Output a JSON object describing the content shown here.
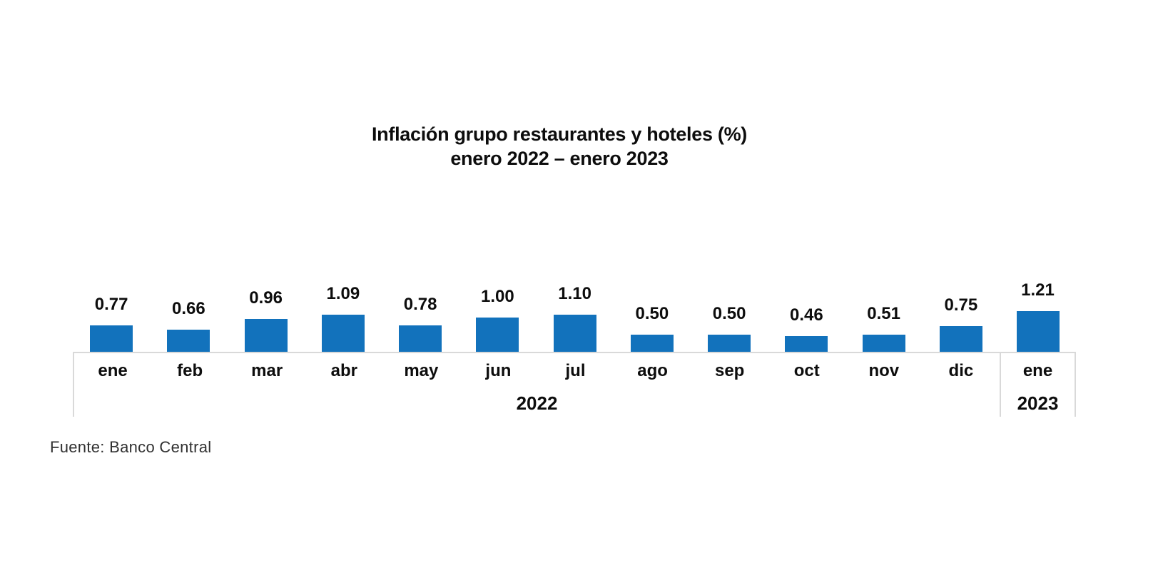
{
  "chart_data": {
    "type": "bar",
    "title": "Inflación grupo restaurantes y hoteles (%)",
    "subtitle": "enero 2022 – enero 2023",
    "categories": [
      "ene",
      "feb",
      "mar",
      "abr",
      "may",
      "jun",
      "jul",
      "ago",
      "sep",
      "oct",
      "nov",
      "dic",
      "ene"
    ],
    "values": [
      0.77,
      0.66,
      0.96,
      1.09,
      0.78,
      1.0,
      1.1,
      0.5,
      0.5,
      0.46,
      0.51,
      0.75,
      1.21
    ],
    "value_labels": [
      "0.77",
      "0.66",
      "0.96",
      "1.09",
      "0.78",
      "1.00",
      "1.10",
      "0.50",
      "0.50",
      "0.46",
      "0.51",
      "0.75",
      "1.21"
    ],
    "year_groups": [
      {
        "label": "2022",
        "months": 12
      },
      {
        "label": "2023",
        "months": 1
      }
    ],
    "xlabel": "",
    "ylabel": "",
    "ylim": [
      0,
      1.4
    ],
    "grid": false,
    "legend": false,
    "value_labels_shown": true,
    "bar_color": "#1272bc",
    "axis_line_color": "#d9d9d9",
    "text_color": "#0d0d0d"
  },
  "source": {
    "label": "Fuente: Banco Central"
  }
}
